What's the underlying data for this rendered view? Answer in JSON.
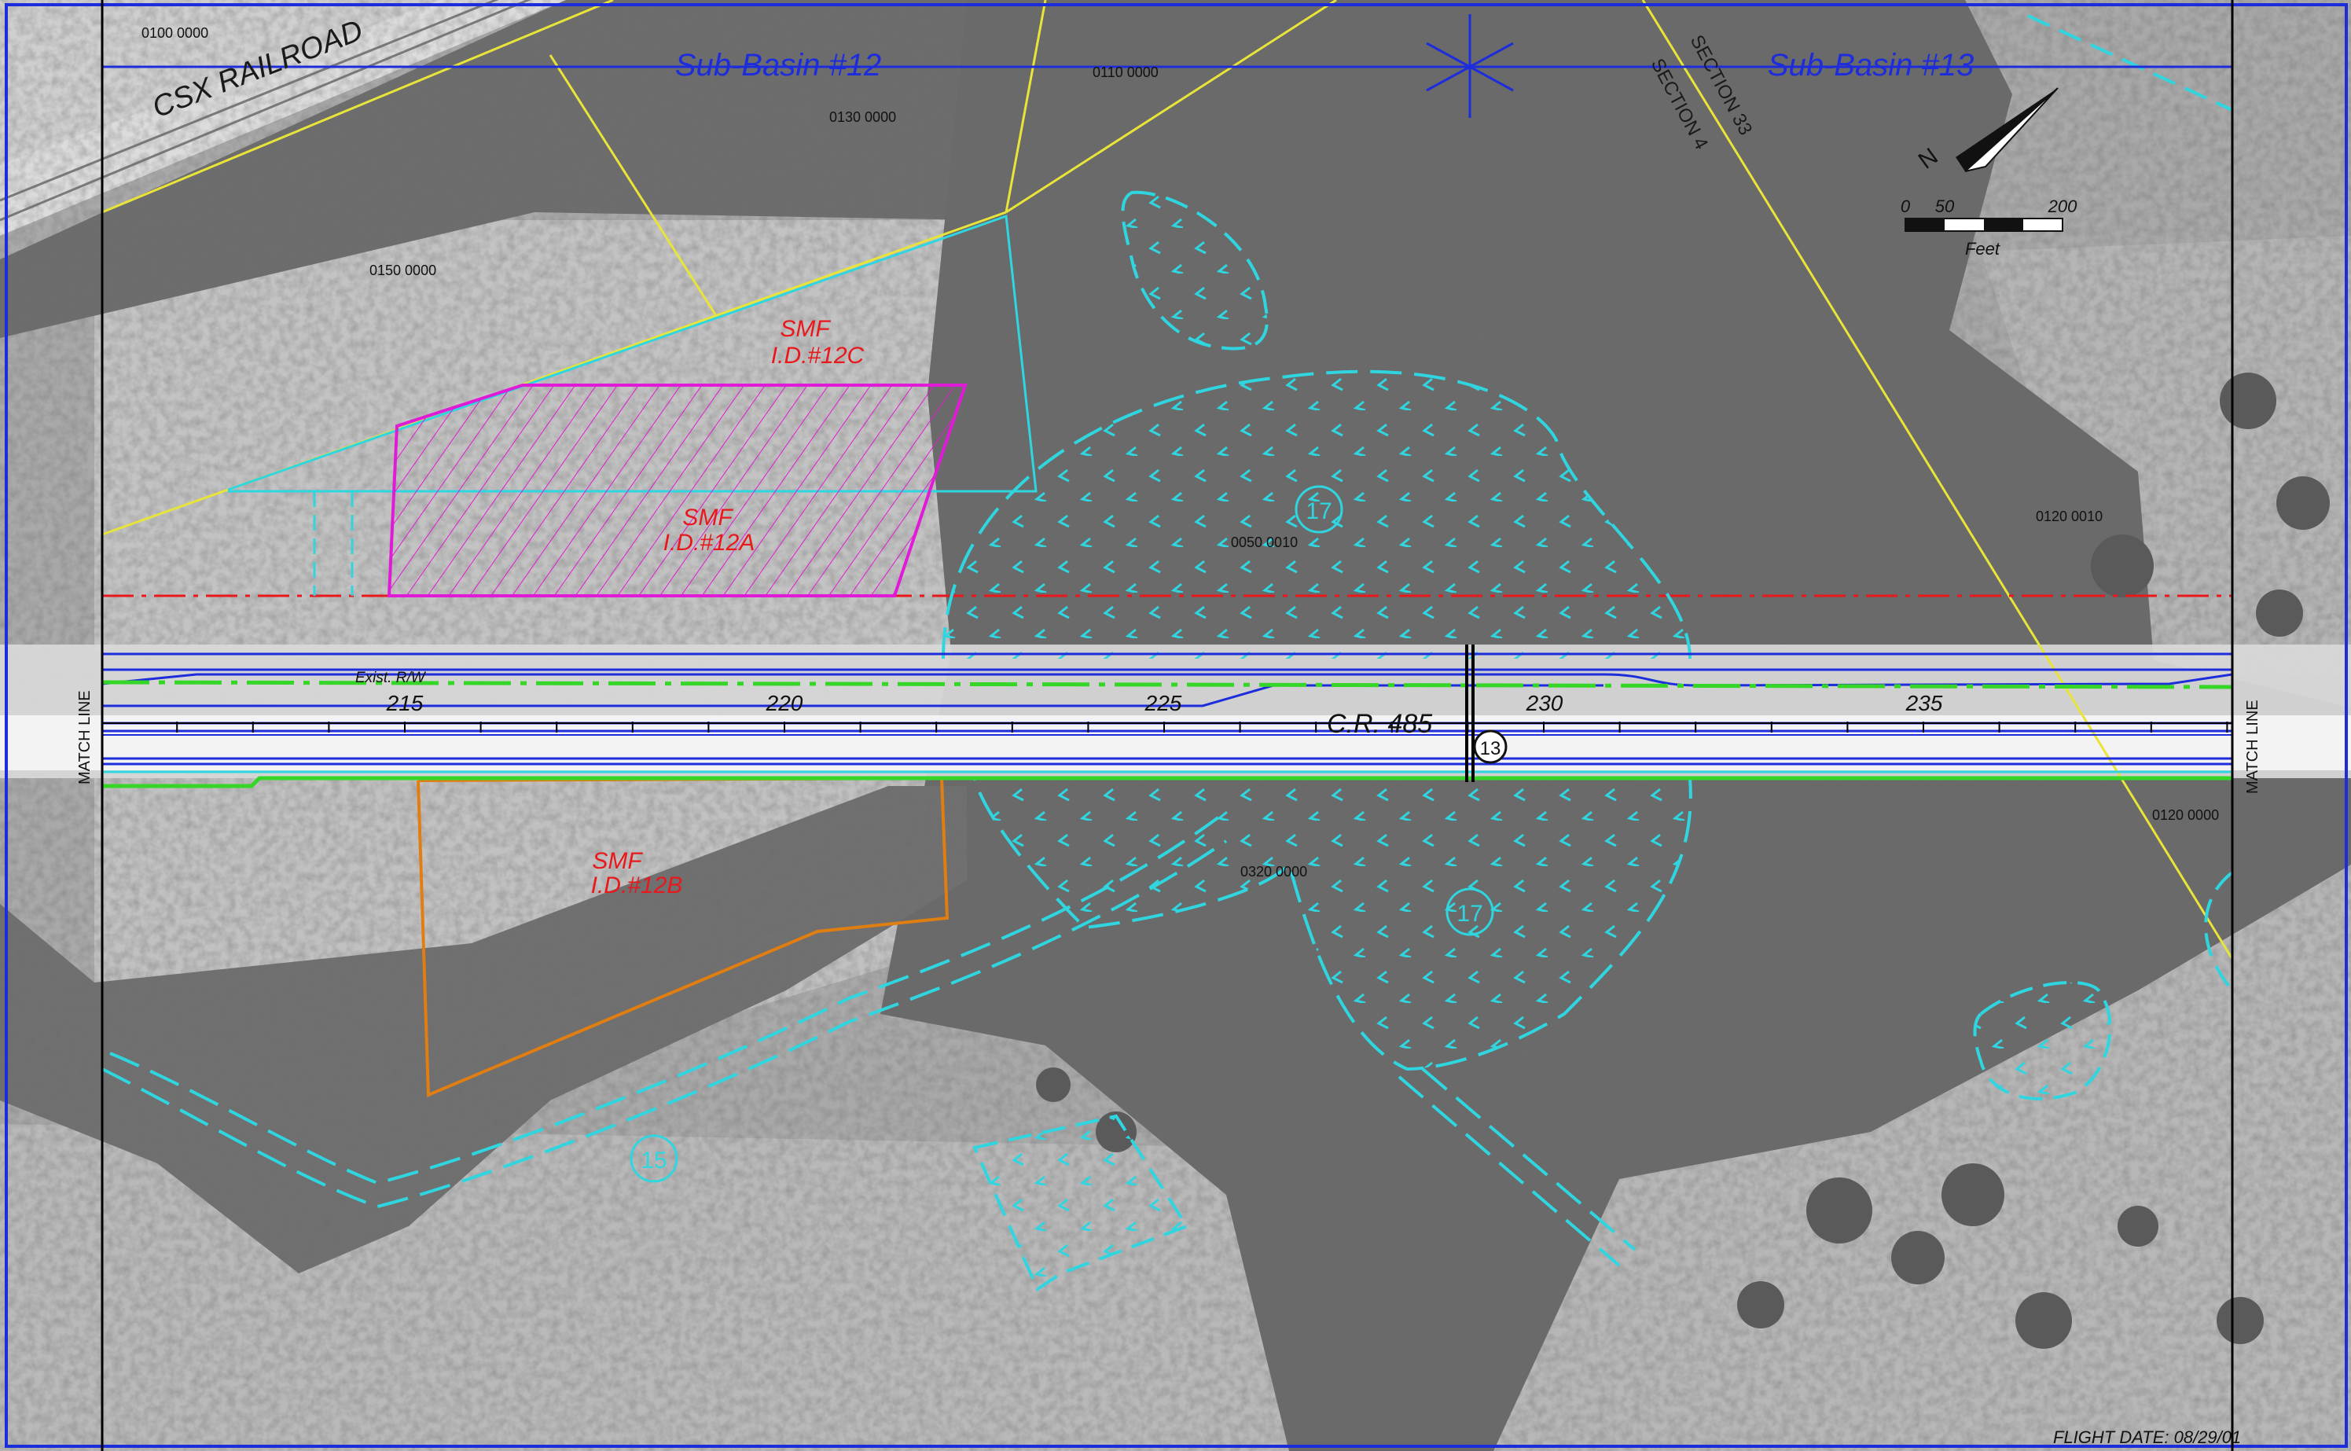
{
  "header": {
    "sub_basin_left": "Sub-Basin #12",
    "sub_basin_right": "Sub-Basin #13"
  },
  "labels": {
    "railroad": "CSX RAILROAD",
    "section_33": "SECTION 33",
    "section_4": "SECTION 4",
    "road_name": "C.R. 485",
    "exist_rw": "Exist. R/W",
    "match_line": "MATCH LINE",
    "flight_date": "FLIGHT DATE:   08/29/01"
  },
  "parcels": [
    "0100 0000",
    "0110 0000",
    "0130 0000",
    "0150 0000",
    "0050 0010",
    "0120 0010",
    "0120 0000",
    "0320 0000"
  ],
  "stations": [
    "215",
    "220",
    "225",
    "230",
    "235"
  ],
  "smf": [
    {
      "name": "SMF",
      "id": "I.D.#12C"
    },
    {
      "name": "SMF",
      "id": "I.D.#12A"
    },
    {
      "name": "SMF",
      "id": "I.D.#12B"
    }
  ],
  "circle_markers": [
    "17",
    "17",
    "13",
    "15"
  ],
  "scale_bar": {
    "ticks": [
      "0",
      "50",
      "200"
    ],
    "unit": "Feet"
  },
  "north_arrow_label": "N",
  "colors": {
    "basin_line": "#1d2ddb",
    "wetland": "#2fd6e0",
    "smf_label": "#e8181c",
    "smf_12a_outline": "#e01ad6",
    "smf_12b_outline": "#e07e12",
    "right_of_way": "#36d628",
    "parcel_line": "#e8e43a",
    "red_line": "#e8181c"
  }
}
